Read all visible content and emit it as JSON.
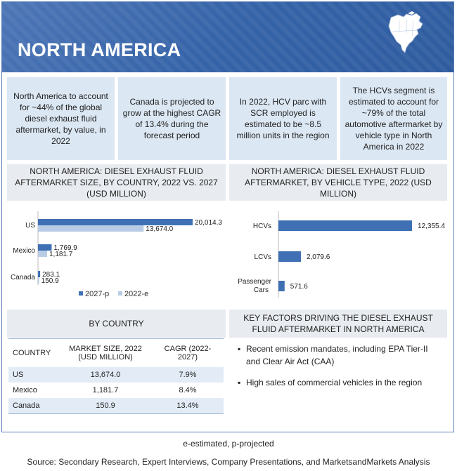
{
  "header": {
    "title": "NORTH AMERICA",
    "map_icon": "north-america-map-icon"
  },
  "highlights": [
    "North America to account for ~44% of the global diesel exhaust fluid aftermarket, by value, in 2022",
    "Canada is projected to grow at the highest CAGR of 13.4% during the forecast period",
    "In 2022, HCV parc with SCR employed is estimated to be ~8.5 million units in the region",
    "The HCVs segment is estimated to account for ~79% of the total automotive aftermarket by vehicle type in North America in 2022"
  ],
  "chart_data": [
    {
      "type": "bar",
      "orientation": "horizontal",
      "title": "NORTH AMERICA: DIESEL EXHAUST FLUID AFTERMARKET SIZE, BY COUNTRY, 2022 VS. 2027 (USD MILLION)",
      "categories": [
        "US",
        "Mexico",
        "Canada"
      ],
      "series": [
        {
          "name": "2027-p",
          "values": [
            20014.3,
            1769.9,
            283.1
          ],
          "labels": [
            "20,014.3",
            "1,769.9",
            "283.1"
          ],
          "color": "#3f70b4"
        },
        {
          "name": "2022-e",
          "values": [
            13674.0,
            1181.7,
            150.9
          ],
          "labels": [
            "13,674.0",
            "1,181.7",
            "150.9"
          ],
          "color": "#b9cce6"
        }
      ],
      "xlim": [
        0,
        20014.3
      ],
      "legend": "bottom"
    },
    {
      "type": "bar",
      "orientation": "horizontal",
      "title": "NORTH AMERICA: DIESEL EXHAUST FLUID AFTERMARKET, BY VEHICLE TYPE, 2022 (USD MILLION)",
      "categories": [
        "HCVs",
        "LCVs",
        "Passenger Cars"
      ],
      "values": [
        12355.4,
        2079.6,
        571.6
      ],
      "labels": [
        "12,355.4",
        "2,079.6",
        "571.6"
      ],
      "color": "#3f70b4",
      "xlim": [
        0,
        12355.4
      ]
    }
  ],
  "country_section": {
    "heading": "BY COUNTRY",
    "columns": [
      "COUNTRY",
      "MARKET SIZE, 2022 (USD MILLION)",
      "CAGR (2022-2027)"
    ],
    "rows": [
      {
        "country": "US",
        "size": "13,674.0",
        "cagr": "7.9%"
      },
      {
        "country": "Mexico",
        "size": "1,181.7",
        "cagr": "8.4%"
      },
      {
        "country": "Canada",
        "size": "150.9",
        "cagr": "13.4%"
      }
    ]
  },
  "key_factors": {
    "heading": "KEY FACTORS DRIVING THE DIESEL EXHAUST FLUID AFTERMARKET IN NORTH AMERICA",
    "items": [
      "Recent emission mandates, including EPA Tier-II and Clear Air Act (CAA)",
      "High sales of commercial vehicles in the region"
    ]
  },
  "footnote": "e-estimated, p-projected",
  "source": "Source: Secondary Research, Expert Interviews, Company Presentations, and MarketsandMarkets Analysis"
}
